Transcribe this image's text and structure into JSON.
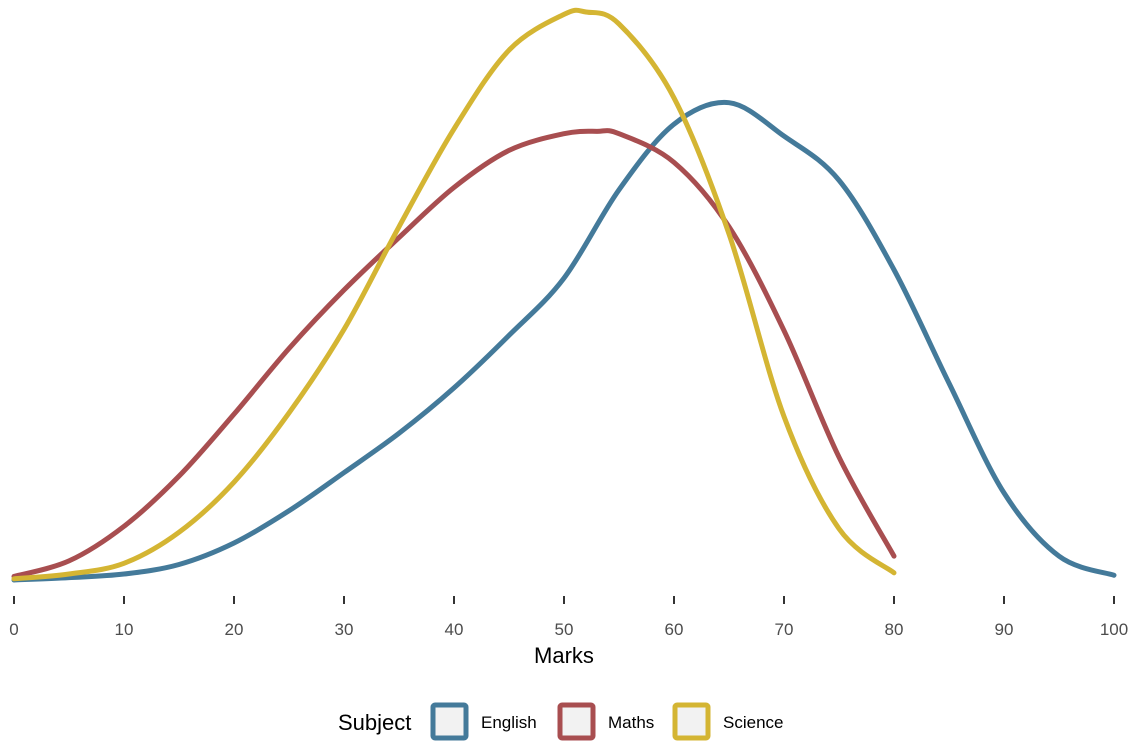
{
  "chart_data": {
    "type": "area",
    "title": "",
    "xlabel": "Marks",
    "ylabel": "",
    "xlim": [
      0,
      100
    ],
    "x_ticks": [
      "0",
      "10",
      "20",
      "30",
      "40",
      "50",
      "60",
      "70",
      "80",
      "90",
      "100"
    ],
    "y_ticks": [],
    "grid": false,
    "legend": {
      "title": "Subject",
      "position": "bottom"
    },
    "series": [
      {
        "name": "English",
        "color": "#447A9A",
        "x": [
          0,
          5,
          10,
          15,
          20,
          25,
          30,
          35,
          40,
          45,
          50,
          55,
          60,
          65,
          70,
          75,
          80,
          85,
          90,
          95,
          100
        ],
        "y": [
          0,
          0.002,
          0.005,
          0.013,
          0.031,
          0.058,
          0.09,
          0.123,
          0.161,
          0.205,
          0.253,
          0.327,
          0.382,
          0.4,
          0.372,
          0.335,
          0.26,
          0.165,
          0.073,
          0.02,
          0.004
        ]
      },
      {
        "name": "Maths",
        "color": "#A84E50",
        "x": [
          0,
          5,
          10,
          15,
          20,
          25,
          30,
          35,
          40,
          45,
          50,
          53,
          55,
          60,
          65,
          70,
          75,
          80
        ],
        "y": [
          0.003,
          0.016,
          0.045,
          0.087,
          0.139,
          0.194,
          0.243,
          0.287,
          0.329,
          0.36,
          0.374,
          0.376,
          0.374,
          0.35,
          0.296,
          0.209,
          0.103,
          0.02
        ]
      },
      {
        "name": "Science",
        "color": "#D4B533",
        "x": [
          0,
          5,
          10,
          15,
          20,
          25,
          30,
          35,
          40,
          45,
          50,
          52,
          55,
          60,
          65,
          70,
          75,
          80
        ],
        "y": [
          0.001,
          0.005,
          0.014,
          0.04,
          0.082,
          0.14,
          0.21,
          0.296,
          0.378,
          0.444,
          0.474,
          0.476,
          0.466,
          0.404,
          0.29,
          0.137,
          0.043,
          0.006
        ]
      }
    ]
  }
}
